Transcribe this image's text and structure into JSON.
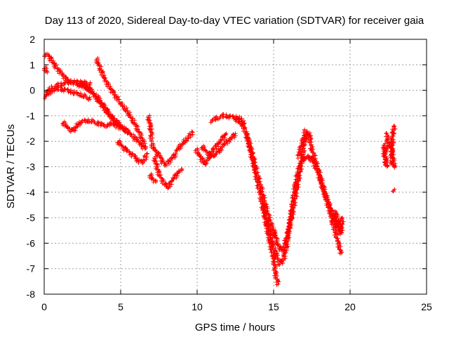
{
  "chart_data": {
    "type": "scatter",
    "title": "Day 113 of 2020, Sidereal Day-to-day VTEC variation (SDTVAR) for receiver gaia",
    "xlabel": "GPS time / hours",
    "ylabel": "SDTVAR / TECUs",
    "xlim": [
      0,
      25
    ],
    "ylim": [
      -8,
      2
    ],
    "xticks": [
      0,
      5,
      10,
      15,
      20,
      25
    ],
    "yticks": [
      -8,
      -7,
      -6,
      -5,
      -4,
      -3,
      -2,
      -1,
      0,
      1,
      2
    ],
    "grid": true,
    "marker": "+",
    "series": [
      {
        "name": "SDTVAR",
        "color": "#ff0000",
        "tracks": [
          [
            [
              0.0,
              1.4
            ],
            [
              0.3,
              1.35
            ],
            [
              0.8,
              0.9
            ],
            [
              1.5,
              0.4
            ],
            [
              2.5,
              0.15
            ],
            [
              3.0,
              0.0
            ],
            [
              3.5,
              -0.3
            ],
            [
              4.0,
              -0.7
            ],
            [
              4.5,
              -1.1
            ],
            [
              5.0,
              -1.4
            ],
            [
              5.5,
              -1.65
            ]
          ],
          [
            [
              0.05,
              -0.25
            ],
            [
              0.5,
              0.0
            ],
            [
              1.0,
              0.05
            ],
            [
              1.5,
              0.0
            ],
            [
              2.0,
              -0.1
            ],
            [
              2.5,
              -0.2
            ],
            [
              3.0,
              -0.35
            ]
          ],
          [
            [
              0.0,
              0.9
            ],
            [
              0.2,
              0.7
            ]
          ],
          [
            [
              0.1,
              -0.1
            ],
            [
              0.5,
              0.1
            ],
            [
              1.0,
              0.2
            ],
            [
              1.5,
              0.3
            ],
            [
              2.0,
              0.35
            ],
            [
              2.5,
              0.3
            ],
            [
              3.0,
              0.25
            ]
          ],
          [
            [
              2.3,
              0.3
            ],
            [
              2.8,
              0.15
            ],
            [
              3.3,
              -0.2
            ],
            [
              3.8,
              -0.6
            ],
            [
              4.3,
              -1.0
            ],
            [
              4.8,
              -1.3
            ],
            [
              5.3,
              -1.55
            ],
            [
              5.8,
              -1.8
            ],
            [
              6.3,
              -2.1
            ],
            [
              6.6,
              -2.3
            ]
          ],
          [
            [
              3.4,
              1.25
            ],
            [
              3.7,
              0.8
            ],
            [
              4.0,
              0.4
            ],
            [
              4.5,
              -0.1
            ],
            [
              5.0,
              -0.5
            ],
            [
              5.5,
              -0.9
            ],
            [
              6.0,
              -1.4
            ],
            [
              6.4,
              -1.9
            ],
            [
              6.6,
              -2.2
            ]
          ],
          [
            [
              1.2,
              -1.25
            ],
            [
              1.6,
              -1.5
            ],
            [
              1.9,
              -1.6
            ],
            [
              2.1,
              -1.4
            ],
            [
              2.5,
              -1.2
            ],
            [
              3.0,
              -1.2
            ],
            [
              3.5,
              -1.3
            ],
            [
              4.0,
              -1.4
            ],
            [
              4.5,
              -1.3
            ],
            [
              5.0,
              -1.5
            ]
          ],
          [
            [
              4.8,
              -2.0
            ],
            [
              5.1,
              -2.2
            ],
            [
              5.5,
              -2.4
            ],
            [
              5.9,
              -2.6
            ],
            [
              6.2,
              -2.8
            ],
            [
              6.5,
              -2.8
            ],
            [
              6.7,
              -2.5
            ]
          ],
          [
            [
              6.8,
              -1.0
            ],
            [
              6.9,
              -1.3
            ],
            [
              7.0,
              -1.6
            ],
            [
              7.0,
              -2.0
            ]
          ],
          [
            [
              6.9,
              -3.3
            ],
            [
              7.1,
              -3.5
            ],
            [
              7.3,
              -3.6
            ]
          ],
          [
            [
              7.0,
              -2.1
            ],
            [
              7.3,
              -2.4
            ],
            [
              7.6,
              -2.6
            ],
            [
              7.8,
              -2.9
            ],
            [
              8.0,
              -2.9
            ],
            [
              8.3,
              -2.7
            ],
            [
              8.6,
              -2.5
            ]
          ],
          [
            [
              7.2,
              -2.6
            ],
            [
              7.4,
              -3.1
            ],
            [
              7.6,
              -3.4
            ],
            [
              7.9,
              -3.7
            ],
            [
              8.1,
              -3.8
            ],
            [
              8.4,
              -3.5
            ],
            [
              8.8,
              -3.2
            ],
            [
              9.0,
              -3.1
            ]
          ],
          [
            [
              8.6,
              -2.4
            ],
            [
              8.9,
              -2.2
            ],
            [
              9.2,
              -2.0
            ],
            [
              9.5,
              -1.8
            ],
            [
              9.7,
              -1.65
            ]
          ],
          [
            [
              9.9,
              -2.3
            ],
            [
              10.2,
              -2.6
            ],
            [
              10.5,
              -2.9
            ],
            [
              10.8,
              -2.6
            ],
            [
              11.1,
              -2.3
            ],
            [
              11.5,
              -2.0
            ],
            [
              11.9,
              -1.7
            ]
          ],
          [
            [
              10.3,
              -2.2
            ],
            [
              10.6,
              -2.4
            ],
            [
              11.0,
              -2.6
            ],
            [
              11.4,
              -2.4
            ],
            [
              11.8,
              -2.1
            ],
            [
              12.2,
              -1.9
            ],
            [
              12.5,
              -1.7
            ]
          ],
          [
            [
              10.9,
              -1.2
            ],
            [
              11.3,
              -1.1
            ],
            [
              11.8,
              -1.0
            ],
            [
              12.3,
              -1.05
            ],
            [
              12.8,
              -1.1
            ],
            [
              13.1,
              -1.3
            ]
          ],
          [
            [
              12.5,
              -1.1
            ],
            [
              13.0,
              -1.4
            ],
            [
              13.3,
              -1.8
            ],
            [
              13.6,
              -2.5
            ],
            [
              13.9,
              -3.2
            ],
            [
              14.2,
              -3.9
            ],
            [
              14.5,
              -4.6
            ],
            [
              14.8,
              -5.2
            ],
            [
              15.1,
              -5.7
            ]
          ],
          [
            [
              13.2,
              -1.7
            ],
            [
              13.5,
              -2.4
            ],
            [
              13.8,
              -3.2
            ],
            [
              14.1,
              -4.0
            ],
            [
              14.4,
              -4.9
            ],
            [
              14.7,
              -5.8
            ],
            [
              15.0,
              -6.6
            ],
            [
              15.1,
              -7.1
            ],
            [
              15.2,
              -7.4
            ],
            [
              15.3,
              -7.6
            ]
          ],
          [
            [
              14.3,
              -4.5
            ],
            [
              14.6,
              -5.2
            ],
            [
              14.9,
              -5.9
            ],
            [
              15.2,
              -6.5
            ],
            [
              15.4,
              -6.8
            ],
            [
              15.6,
              -6.7
            ],
            [
              15.8,
              -6.3
            ],
            [
              16.0,
              -5.5
            ],
            [
              16.2,
              -4.6
            ],
            [
              16.4,
              -3.8
            ],
            [
              16.6,
              -3.2
            ],
            [
              16.8,
              -2.8
            ],
            [
              17.0,
              -2.6
            ]
          ],
          [
            [
              15.0,
              -5.5
            ],
            [
              15.3,
              -6.1
            ],
            [
              15.6,
              -6.3
            ],
            [
              15.9,
              -5.7
            ],
            [
              16.2,
              -4.9
            ],
            [
              16.5,
              -3.9
            ],
            [
              16.8,
              -2.9
            ],
            [
              17.0,
              -2.1
            ],
            [
              17.2,
              -1.7
            ],
            [
              17.4,
              -1.8
            ]
          ],
          [
            [
              16.6,
              -2.6
            ],
            [
              16.9,
              -2.0
            ],
            [
              17.1,
              -1.6
            ],
            [
              17.3,
              -1.7
            ],
            [
              17.5,
              -2.3
            ],
            [
              17.8,
              -2.9
            ],
            [
              18.1,
              -3.5
            ],
            [
              18.4,
              -4.1
            ],
            [
              18.7,
              -4.6
            ],
            [
              19.0,
              -5.1
            ],
            [
              19.3,
              -5.6
            ]
          ],
          [
            [
              17.0,
              -2.7
            ],
            [
              17.3,
              -2.6
            ],
            [
              17.6,
              -2.8
            ],
            [
              17.9,
              -3.2
            ],
            [
              18.2,
              -3.8
            ],
            [
              18.5,
              -4.4
            ],
            [
              18.8,
              -5.0
            ],
            [
              19.0,
              -5.5
            ],
            [
              19.2,
              -5.9
            ],
            [
              19.4,
              -6.4
            ]
          ],
          [
            [
              18.8,
              -5.2
            ],
            [
              19.0,
              -5.0
            ],
            [
              19.1,
              -4.8
            ],
            [
              19.2,
              -5.3
            ],
            [
              19.3,
              -5.1
            ],
            [
              19.4,
              -5.6
            ],
            [
              19.5,
              -5.0
            ]
          ],
          [
            [
              22.2,
              -2.1
            ],
            [
              22.3,
              -2.6
            ],
            [
              22.4,
              -3.0
            ],
            [
              22.2,
              -2.4
            ],
            [
              22.5,
              -2.2
            ],
            [
              22.4,
              -1.7
            ]
          ],
          [
            [
              22.6,
              -2.0
            ],
            [
              22.7,
              -2.3
            ],
            [
              22.8,
              -2.6
            ],
            [
              22.9,
              -3.0
            ],
            [
              22.7,
              -2.8
            ],
            [
              22.8,
              -1.6
            ],
            [
              22.9,
              -1.4
            ]
          ],
          [
            [
              22.8,
              -3.9
            ],
            [
              22.85,
              -3.95
            ]
          ]
        ]
      }
    ]
  }
}
